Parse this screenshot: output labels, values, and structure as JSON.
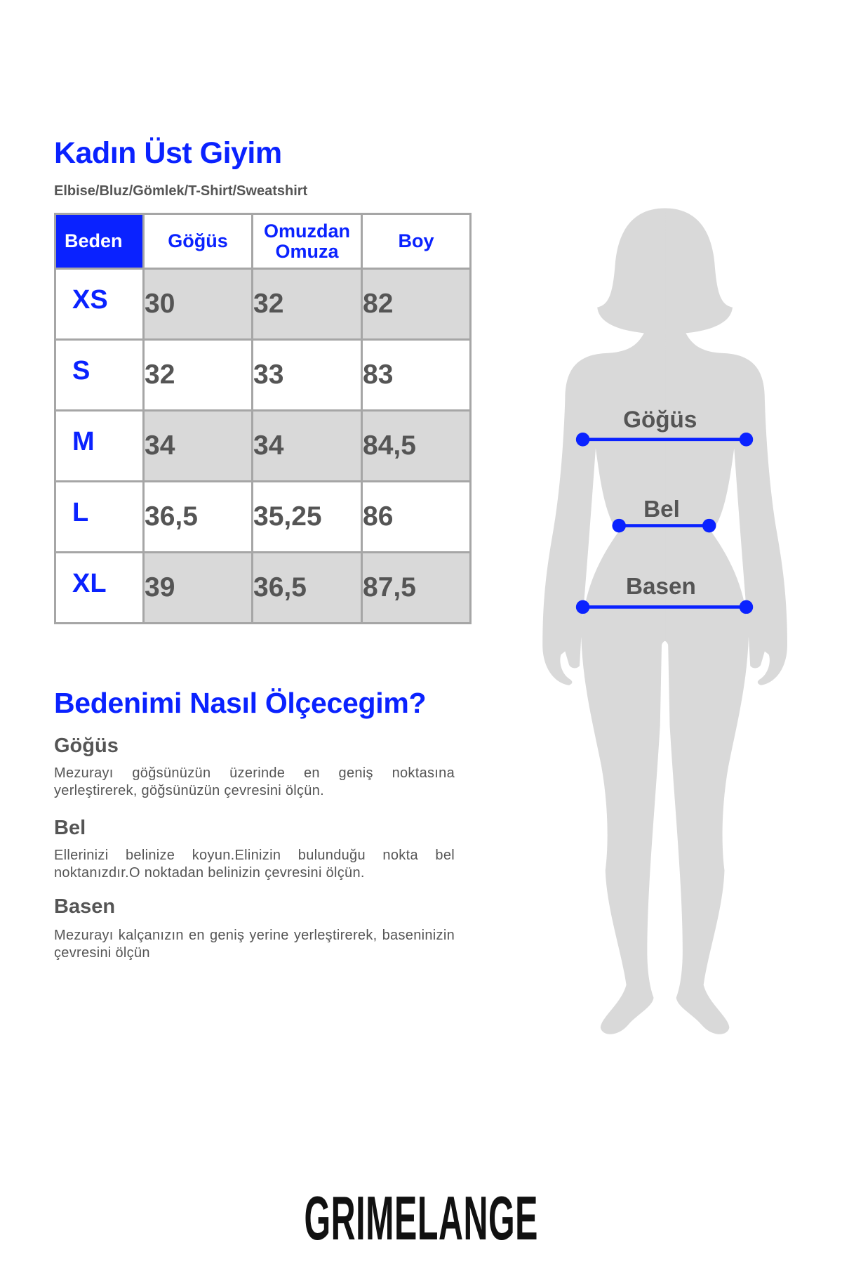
{
  "header": {
    "title": "Kadın Üst Giyim",
    "subtitle": "Elbise/Bluz/Gömlek/T-Shirt/Sweatshirt"
  },
  "size_table": {
    "columns": [
      "Beden",
      "Göğüs",
      "Omuzdan Omuza",
      "Boy"
    ],
    "column_lines": {
      "omuz_1": "Omuzdan",
      "omuz_2": "Omuza"
    },
    "rows": [
      {
        "size": "XS",
        "gogus": "30",
        "omuz": "32",
        "boy": "82"
      },
      {
        "size": "S",
        "gogus": "32",
        "omuz": "33",
        "boy": "83"
      },
      {
        "size": "M",
        "gogus": "34",
        "omuz": "34",
        "boy": "84,5"
      },
      {
        "size": "L",
        "gogus": "36,5",
        "omuz": "35,25",
        "boy": "86"
      },
      {
        "size": "XL",
        "gogus": "39",
        "omuz": "36,5",
        "boy": "87,5"
      }
    ]
  },
  "howto": {
    "title": "Bedenimi Nasıl Ölçecegim?",
    "sections": [
      {
        "heading": "Göğüs",
        "text": "Mezurayı göğsünüzün üzerinde en geniş noktasına yerleştirerek, göğsünüzün çevresini ölçün."
      },
      {
        "heading": "Bel",
        "text": "Ellerinizi belinize koyun.Elinizin bulunduğu nokta bel noktanızdır.O noktadan belinizin çevresini ölçün."
      },
      {
        "heading": "Basen",
        "text": "Mezurayı kalçanızın en geniş yerine yerleştirerek, baseninizin çevresini ölçün"
      }
    ]
  },
  "figure": {
    "labels": {
      "chest": "Göğüs",
      "waist": "Bel",
      "hip": "Basen"
    },
    "silhouette_color": "#d9d9d9",
    "line_color": "#0a22ff"
  },
  "brand": {
    "logo": "GRIMELANGE"
  },
  "colors": {
    "accent": "#0a22ff",
    "text": "#555555",
    "cell_grey": "#d9d9d9",
    "border": "#a6a6a6"
  }
}
